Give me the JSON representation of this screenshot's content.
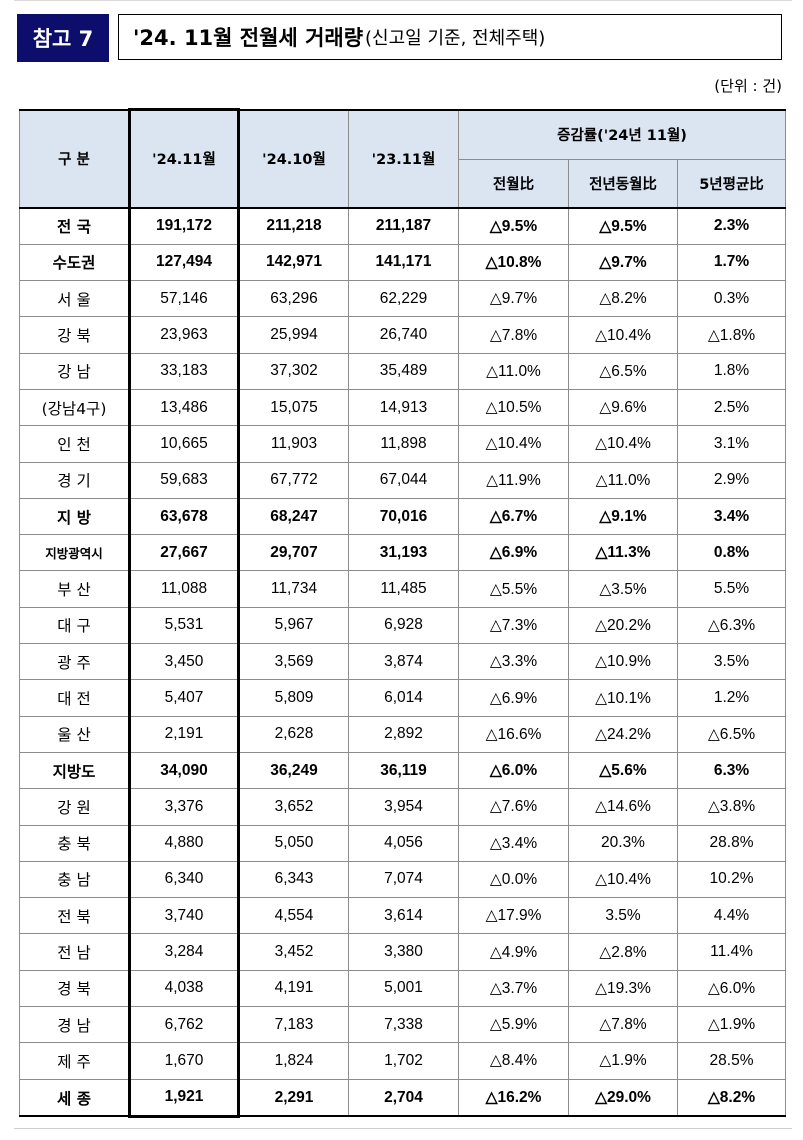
{
  "header": {
    "tag": "참고 7",
    "title_main": "'24. 11월 전월세 거래량",
    "title_sub": "(신고일 기준, 전체주택)"
  },
  "unit": "(단위 : 건)",
  "table": {
    "columns": {
      "category": "구 분",
      "nov24": "'24.11월",
      "oct24": "'24.10월",
      "nov23": "'23.11월",
      "change_group": "증감률('24년 11월)",
      "mom": "전월比",
      "yoy": "전년동월比",
      "avg5y": "5년평균比"
    },
    "rows": [
      {
        "name": "전 국",
        "v1": "191,172",
        "v2": "211,218",
        "v3": "211,187",
        "c1": "△9.5%",
        "c2": "△9.5%",
        "c3": "2.3%",
        "bold": true
      },
      {
        "name": "수도권",
        "v1": "127,494",
        "v2": "142,971",
        "v3": "141,171",
        "c1": "△10.8%",
        "c2": "△9.7%",
        "c3": "1.7%",
        "bold": true
      },
      {
        "name": "서 울",
        "v1": "57,146",
        "v2": "63,296",
        "v3": "62,229",
        "c1": "△9.7%",
        "c2": "△8.2%",
        "c3": "0.3%"
      },
      {
        "name": "강 북",
        "v1": "23,963",
        "v2": "25,994",
        "v3": "26,740",
        "c1": "△7.8%",
        "c2": "△10.4%",
        "c3": "△1.8%"
      },
      {
        "name": "강 남",
        "v1": "33,183",
        "v2": "37,302",
        "v3": "35,489",
        "c1": "△11.0%",
        "c2": "△6.5%",
        "c3": "1.8%"
      },
      {
        "name": "(강남4구)",
        "v1": "13,486",
        "v2": "15,075",
        "v3": "14,913",
        "c1": "△10.5%",
        "c2": "△9.6%",
        "c3": "2.5%"
      },
      {
        "name": "인 천",
        "v1": "10,665",
        "v2": "11,903",
        "v3": "11,898",
        "c1": "△10.4%",
        "c2": "△10.4%",
        "c3": "3.1%"
      },
      {
        "name": "경 기",
        "v1": "59,683",
        "v2": "67,772",
        "v3": "67,044",
        "c1": "△11.9%",
        "c2": "△11.0%",
        "c3": "2.9%"
      },
      {
        "name": "지 방",
        "v1": "63,678",
        "v2": "68,247",
        "v3": "70,016",
        "c1": "△6.7%",
        "c2": "△9.1%",
        "c3": "3.4%",
        "bold": true
      },
      {
        "name": "지방광역시",
        "v1": "27,667",
        "v2": "29,707",
        "v3": "31,193",
        "c1": "△6.9%",
        "c2": "△11.3%",
        "c3": "0.8%",
        "bold": true
      },
      {
        "name": "부 산",
        "v1": "11,088",
        "v2": "11,734",
        "v3": "11,485",
        "c1": "△5.5%",
        "c2": "△3.5%",
        "c3": "5.5%"
      },
      {
        "name": "대 구",
        "v1": "5,531",
        "v2": "5,967",
        "v3": "6,928",
        "c1": "△7.3%",
        "c2": "△20.2%",
        "c3": "△6.3%"
      },
      {
        "name": "광 주",
        "v1": "3,450",
        "v2": "3,569",
        "v3": "3,874",
        "c1": "△3.3%",
        "c2": "△10.9%",
        "c3": "3.5%"
      },
      {
        "name": "대 전",
        "v1": "5,407",
        "v2": "5,809",
        "v3": "6,014",
        "c1": "△6.9%",
        "c2": "△10.1%",
        "c3": "1.2%"
      },
      {
        "name": "울 산",
        "v1": "2,191",
        "v2": "2,628",
        "v3": "2,892",
        "c1": "△16.6%",
        "c2": "△24.2%",
        "c3": "△6.5%"
      },
      {
        "name": "지방도",
        "v1": "34,090",
        "v2": "36,249",
        "v3": "36,119",
        "c1": "△6.0%",
        "c2": "△5.6%",
        "c3": "6.3%",
        "bold": true
      },
      {
        "name": "강 원",
        "v1": "3,376",
        "v2": "3,652",
        "v3": "3,954",
        "c1": "△7.6%",
        "c2": "△14.6%",
        "c3": "△3.8%"
      },
      {
        "name": "충 북",
        "v1": "4,880",
        "v2": "5,050",
        "v3": "4,056",
        "c1": "△3.4%",
        "c2": "20.3%",
        "c3": "28.8%"
      },
      {
        "name": "충 남",
        "v1": "6,340",
        "v2": "6,343",
        "v3": "7,074",
        "c1": "△0.0%",
        "c2": "△10.4%",
        "c3": "10.2%"
      },
      {
        "name": "전 북",
        "v1": "3,740",
        "v2": "4,554",
        "v3": "3,614",
        "c1": "△17.9%",
        "c2": "3.5%",
        "c3": "4.4%"
      },
      {
        "name": "전 남",
        "v1": "3,284",
        "v2": "3,452",
        "v3": "3,380",
        "c1": "△4.9%",
        "c2": "△2.8%",
        "c3": "11.4%"
      },
      {
        "name": "경 북",
        "v1": "4,038",
        "v2": "4,191",
        "v3": "5,001",
        "c1": "△3.7%",
        "c2": "△19.3%",
        "c3": "△6.0%"
      },
      {
        "name": "경 남",
        "v1": "6,762",
        "v2": "7,183",
        "v3": "7,338",
        "c1": "△5.9%",
        "c2": "△7.8%",
        "c3": "△1.9%"
      },
      {
        "name": "제 주",
        "v1": "1,670",
        "v2": "1,824",
        "v3": "1,702",
        "c1": "△8.4%",
        "c2": "△1.9%",
        "c3": "28.5%"
      },
      {
        "name": "세 종",
        "v1": "1,921",
        "v2": "2,291",
        "v3": "2,704",
        "c1": "△16.2%",
        "c2": "△29.0%",
        "c3": "△8.2%",
        "bold": true
      }
    ]
  }
}
